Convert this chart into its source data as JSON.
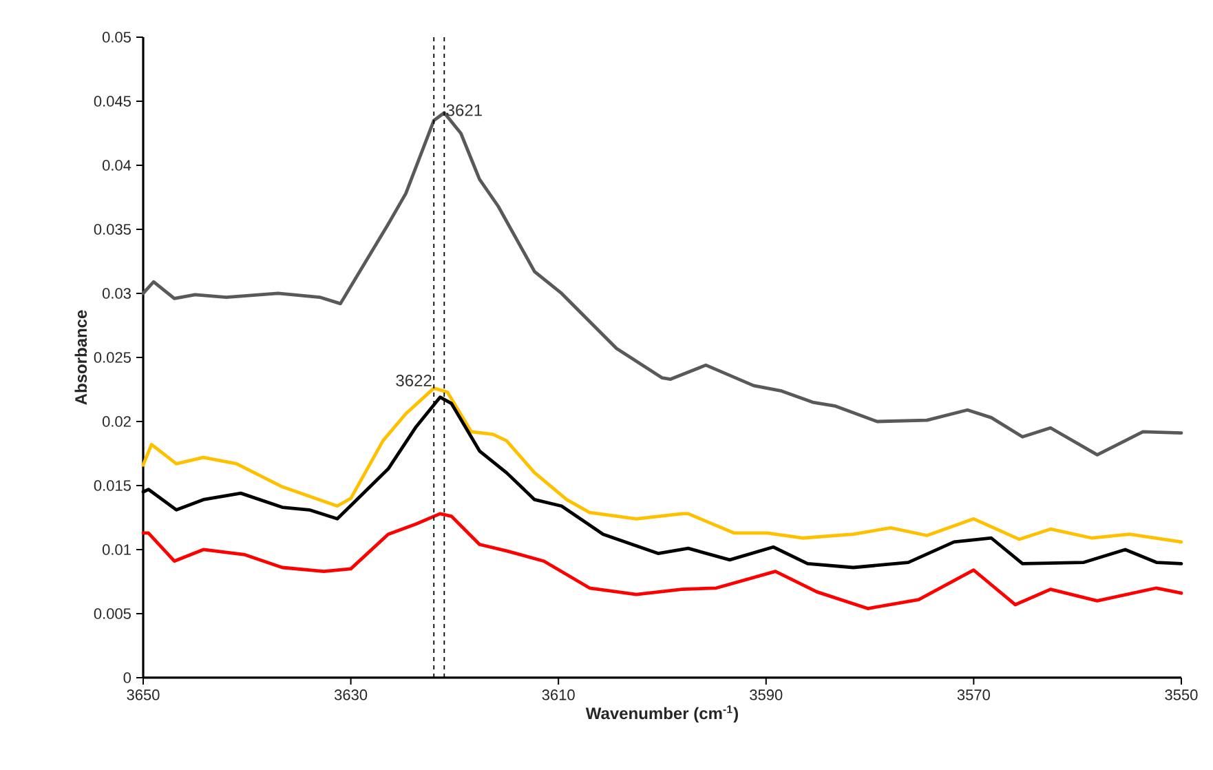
{
  "chart_data": {
    "type": "line",
    "xlabel": "Wavenumber (cm$^{-1}$)",
    "ylabel": "Absorbance",
    "xlim": [
      3650,
      3550
    ],
    "xticks": [
      3650,
      3630,
      3610,
      3590,
      3570,
      3550
    ],
    "ylim": [
      0,
      0.05
    ],
    "yticks": [
      0,
      0.005,
      0.01,
      0.015,
      0.02,
      0.025,
      0.03,
      0.035,
      0.04,
      0.045,
      0.05
    ],
    "grid": false,
    "marker": "none",
    "line_style": "solid",
    "series": [
      {
        "color": "#595959",
        "x": [
          3650,
          3649,
          3647,
          3645,
          3642,
          3637,
          3633,
          3631,
          3626.4,
          3624.7,
          3622,
          3621,
          3619.4,
          3617.6,
          3615.8,
          3612.3,
          3609.7,
          3604.4,
          3600,
          3599.2,
          3595.8,
          3591.2,
          3588.6,
          3585.5,
          3583.3,
          3579.3,
          3574.5,
          3570.6,
          3568.3,
          3565.3,
          3562.6,
          3558.1,
          3553.7,
          3550
        ],
        "values": [
          0.03,
          0.0309,
          0.0296,
          0.0299,
          0.0297,
          0.03,
          0.0297,
          0.0292,
          0.0354,
          0.0378,
          0.0435,
          0.0441,
          0.0425,
          0.0389,
          0.0368,
          0.0317,
          0.03,
          0.0257,
          0.0234,
          0.0233,
          0.0244,
          0.0228,
          0.0224,
          0.0215,
          0.0212,
          0.02,
          0.0201,
          0.0209,
          0.0203,
          0.0188,
          0.0195,
          0.0174,
          0.0192,
          0.0191
        ]
      },
      {
        "color": "#ffc000",
        "x": [
          3650,
          3649.2,
          3646.8,
          3644.2,
          3641,
          3636.6,
          3631.3,
          3630,
          3626.9,
          3624.7,
          3622,
          3620.7,
          3618.4,
          3616.3,
          3615,
          3612.3,
          3609.2,
          3607,
          3602.5,
          3598.1,
          3597.5,
          3593.1,
          3589.9,
          3586.5,
          3581.6,
          3578,
          3574.5,
          3570,
          3565.6,
          3562.6,
          3558.6,
          3555,
          3550
        ],
        "values": [
          0.0166,
          0.0182,
          0.0167,
          0.0172,
          0.0167,
          0.0149,
          0.0134,
          0.014,
          0.0185,
          0.0206,
          0.0226,
          0.0223,
          0.0192,
          0.019,
          0.0185,
          0.016,
          0.0139,
          0.0129,
          0.0124,
          0.0128,
          0.0128,
          0.0113,
          0.0113,
          0.0109,
          0.0112,
          0.0117,
          0.0111,
          0.0124,
          0.0108,
          0.0116,
          0.0109,
          0.0112,
          0.0106
        ]
      },
      {
        "color": "#000000",
        "x": [
          3650,
          3649.5,
          3646.8,
          3644.2,
          3640.6,
          3636.6,
          3634,
          3631.3,
          3626.4,
          3623.7,
          3621.4,
          3620.3,
          3617.6,
          3615,
          3612.3,
          3609.7,
          3605.7,
          3600.4,
          3597.5,
          3593.5,
          3589.3,
          3586,
          3581.6,
          3576.3,
          3571.9,
          3568.3,
          3565.3,
          3559.4,
          3555.4,
          3552.4,
          3550
        ],
        "values": [
          0.0145,
          0.0147,
          0.0131,
          0.0139,
          0.0144,
          0.0133,
          0.0131,
          0.0124,
          0.0163,
          0.0196,
          0.0219,
          0.0214,
          0.0177,
          0.016,
          0.0139,
          0.0134,
          0.0112,
          0.0097,
          0.0101,
          0.0092,
          0.0102,
          0.0089,
          0.0086,
          0.009,
          0.0106,
          0.0109,
          0.0089,
          0.009,
          0.01,
          0.009,
          0.0089
        ]
      },
      {
        "color": "#ff0000",
        "x": [
          3650,
          3649.5,
          3647,
          3644.2,
          3640.2,
          3636.6,
          3632.6,
          3630,
          3626.4,
          3623.7,
          3621.4,
          3620.3,
          3617.6,
          3615,
          3611.4,
          3607,
          3602.5,
          3598.1,
          3594.8,
          3589.1,
          3585.1,
          3580.2,
          3575.3,
          3570,
          3566,
          3562.6,
          3558.1,
          3552.4,
          3550
        ],
        "values": [
          0.0113,
          0.0113,
          0.0091,
          0.01,
          0.0096,
          0.0086,
          0.0083,
          0.0085,
          0.0112,
          0.012,
          0.0128,
          0.0126,
          0.0104,
          0.0099,
          0.0091,
          0.007,
          0.0065,
          0.0069,
          0.007,
          0.0083,
          0.0067,
          0.0054,
          0.0061,
          0.0084,
          0.0057,
          0.0069,
          0.006,
          0.007,
          0.0066
        ]
      }
    ],
    "ref_lines": [
      {
        "axis": "x",
        "value": 3622,
        "color": "#000000",
        "line_style": "dashed"
      },
      {
        "axis": "x",
        "value": 3621,
        "color": "#000000",
        "line_style": "dashed"
      }
    ],
    "annotations": [
      {
        "text": "3621",
        "x": 3621,
        "y": 0.0443
      },
      {
        "text": "3622",
        "x": 3622,
        "y": 0.0232
      }
    ]
  }
}
